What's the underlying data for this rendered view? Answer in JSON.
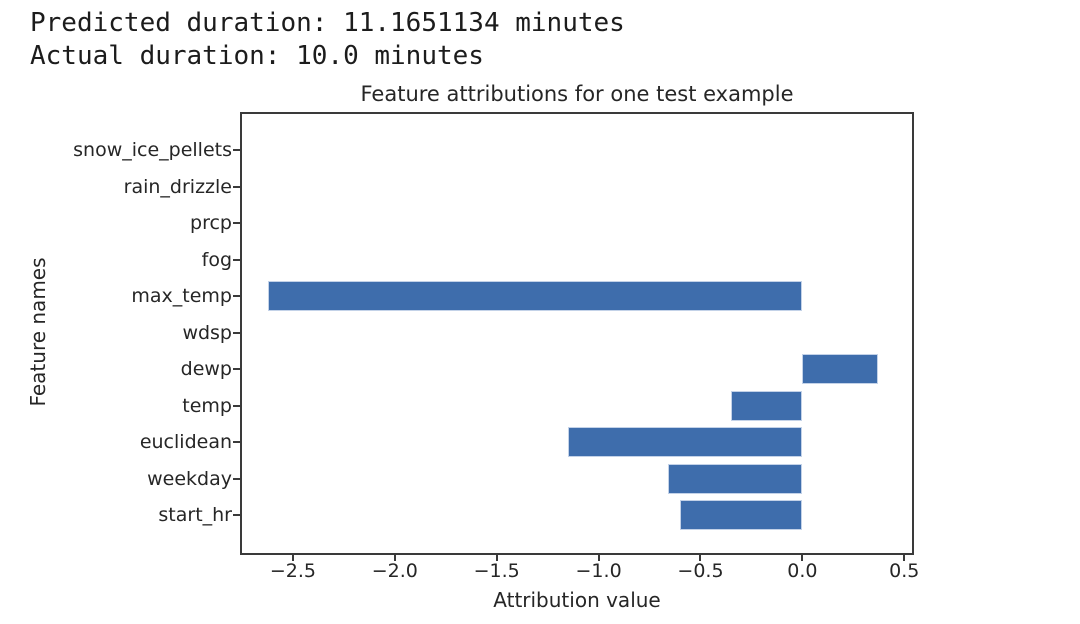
{
  "console": {
    "line1": "Predicted duration: 11.1651134 minutes",
    "line2": "Actual duration: 10.0 minutes"
  },
  "chart_data": {
    "type": "bar",
    "orientation": "horizontal",
    "title": "Feature attributions for one test example",
    "xlabel": "Attribution value",
    "ylabel": "Feature names",
    "categories_top_to_bottom": [
      "snow_ice_pellets",
      "rain_drizzle",
      "prcp",
      "fog",
      "max_temp",
      "wdsp",
      "dewp",
      "temp",
      "euclidean",
      "weekday",
      "start_hr"
    ],
    "values_top_to_bottom": [
      0,
      0,
      0,
      0,
      -2.62,
      0,
      0.37,
      -0.35,
      -1.15,
      -0.66,
      -0.6
    ],
    "xlim": [
      -2.75,
      0.538
    ],
    "xticks": [
      {
        "value": -2.5,
        "label": "−2.5"
      },
      {
        "value": -2.0,
        "label": "−2.0"
      },
      {
        "value": -1.5,
        "label": "−1.5"
      },
      {
        "value": -1.0,
        "label": "−1.0"
      },
      {
        "value": -0.5,
        "label": "−0.5"
      },
      {
        "value": 0.0,
        "label": "0.0"
      },
      {
        "value": 0.5,
        "label": "0.5"
      }
    ],
    "grid": false,
    "legend": "none",
    "bar_color": "#3E6DAC"
  },
  "colors": {
    "bar_fill": "#3E6DAC",
    "bar_edge": "#c3d2e8",
    "spine": "#3a3a3a",
    "text": "#262626",
    "console_text": "#1c1c1c",
    "background": "#ffffff"
  }
}
